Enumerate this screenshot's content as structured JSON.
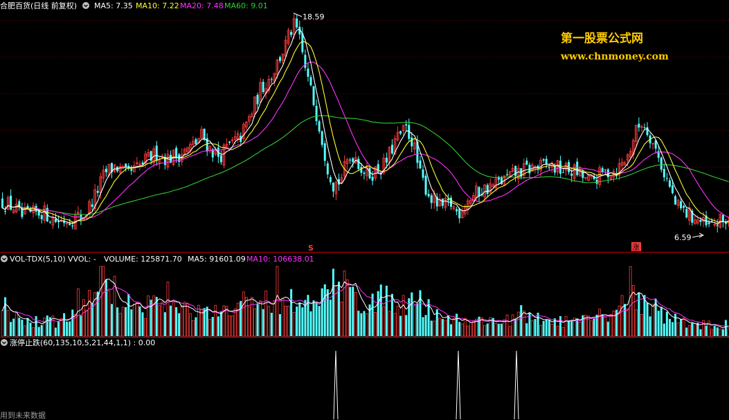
{
  "main_panel": {
    "stock_name": "合肥百货(日线 前复权)",
    "indicators": [
      {
        "label": "MA5: 7.35",
        "color": "#ffffff"
      },
      {
        "label": "MA10: 7.22",
        "color": "#ffff33"
      },
      {
        "label": "MA20: 7.48",
        "color": "#ff33ff"
      },
      {
        "label": "MA60: 9.01",
        "color": "#33cc33"
      }
    ],
    "high_label": "18.59",
    "low_label": "6.59",
    "marker_1": "S",
    "marker_2": "涨"
  },
  "watermark": {
    "line1": "第一股票公式网",
    "line2": "www.chnmoney.com"
  },
  "volume_panel": {
    "name": "VOL-TDX(5,10)",
    "vvol": "VVOL: -",
    "items": [
      {
        "label": "VOLUME: 125871.70",
        "color": "#ffffff"
      },
      {
        "label": "MA5: 91601.09",
        "color": "#ffffff"
      },
      {
        "label": "MA10: 106638.01",
        "color": "#ff33ff"
      }
    ]
  },
  "limit_panel": {
    "name": "涨停止跌(60,135,10,5,21,44,1,1) : 0.00"
  },
  "footer_note": "用到未来数据",
  "colors": {
    "up": "#ff3c3c",
    "down": "#54ffff",
    "ma5": "#ffffff",
    "ma10": "#ffff33",
    "ma20": "#ff33ff",
    "ma60": "#33cc33",
    "divider": "#c00000",
    "watermark": "#ffcc00"
  },
  "chart_data": {
    "type": "candlestick",
    "price_range": [
      6.59,
      18.59
    ],
    "close_trajectory": [
      [
        0,
        8.4
      ],
      [
        20,
        8.0
      ],
      [
        30,
        7.5
      ],
      [
        60,
        7.8
      ],
      [
        80,
        7.3
      ],
      [
        100,
        7.4
      ],
      [
        120,
        7.6
      ],
      [
        135,
        8.6
      ],
      [
        150,
        9.9
      ],
      [
        165,
        10.3
      ],
      [
        180,
        9.8
      ],
      [
        195,
        10.1
      ],
      [
        210,
        10.6
      ],
      [
        225,
        11.0
      ],
      [
        240,
        10.7
      ],
      [
        255,
        10.9
      ],
      [
        270,
        11.2
      ],
      [
        280,
        11.5
      ],
      [
        290,
        12.0
      ],
      [
        300,
        11.3
      ],
      [
        315,
        10.8
      ],
      [
        330,
        11.4
      ],
      [
        345,
        11.8
      ],
      [
        360,
        13.0
      ],
      [
        375,
        14.5
      ],
      [
        390,
        15.2
      ],
      [
        400,
        16.0
      ],
      [
        410,
        16.8
      ],
      [
        418,
        17.6
      ],
      [
        425,
        18.0
      ],
      [
        432,
        17.0
      ],
      [
        440,
        15.5
      ],
      [
        450,
        14.0
      ],
      [
        460,
        12.5
      ],
      [
        470,
        10.5
      ],
      [
        480,
        9.3
      ],
      [
        490,
        9.5
      ],
      [
        500,
        10.5
      ],
      [
        510,
        11.0
      ],
      [
        520,
        10.2
      ],
      [
        530,
        9.8
      ],
      [
        540,
        10.0
      ],
      [
        555,
        10.4
      ],
      [
        570,
        11.7
      ],
      [
        585,
        12.3
      ],
      [
        595,
        11.6
      ],
      [
        605,
        9.8
      ],
      [
        620,
        8.6
      ],
      [
        635,
        8.0
      ],
      [
        650,
        8.2
      ],
      [
        660,
        7.7
      ],
      [
        670,
        8.3
      ],
      [
        690,
        8.9
      ],
      [
        710,
        9.2
      ],
      [
        730,
        9.6
      ],
      [
        750,
        10.0
      ],
      [
        770,
        10.2
      ],
      [
        790,
        10.3
      ],
      [
        810,
        10.1
      ],
      [
        830,
        10.0
      ],
      [
        850,
        9.4
      ],
      [
        870,
        9.9
      ],
      [
        890,
        10.1
      ],
      [
        905,
        10.8
      ],
      [
        915,
        12.0
      ],
      [
        925,
        12.7
      ],
      [
        935,
        12.2
      ],
      [
        945,
        11.2
      ],
      [
        955,
        10.2
      ],
      [
        965,
        9.2
      ],
      [
        975,
        8.1
      ],
      [
        990,
        7.7
      ],
      [
        1005,
        7.4
      ],
      [
        1020,
        6.9
      ],
      [
        1035,
        7.2
      ],
      [
        1053,
        7.4
      ]
    ],
    "volume_trajectory": [
      [
        0,
        0.3
      ],
      [
        40,
        0.2
      ],
      [
        80,
        0.2
      ],
      [
        110,
        0.3
      ],
      [
        130,
        0.55
      ],
      [
        150,
        0.8
      ],
      [
        165,
        0.6
      ],
      [
        180,
        0.45
      ],
      [
        200,
        0.35
      ],
      [
        220,
        0.5
      ],
      [
        240,
        0.4
      ],
      [
        270,
        0.35
      ],
      [
        300,
        0.3
      ],
      [
        330,
        0.3
      ],
      [
        355,
        0.5
      ],
      [
        380,
        0.45
      ],
      [
        400,
        0.5
      ],
      [
        420,
        0.55
      ],
      [
        440,
        0.4
      ],
      [
        460,
        0.45
      ],
      [
        475,
        0.6
      ],
      [
        490,
        0.8
      ],
      [
        505,
        0.55
      ],
      [
        520,
        0.5
      ],
      [
        540,
        0.45
      ],
      [
        560,
        0.55
      ],
      [
        575,
        0.45
      ],
      [
        595,
        0.5
      ],
      [
        615,
        0.4
      ],
      [
        640,
        0.25
      ],
      [
        680,
        0.2
      ],
      [
        720,
        0.22
      ],
      [
        760,
        0.25
      ],
      [
        800,
        0.2
      ],
      [
        840,
        0.2
      ],
      [
        880,
        0.3
      ],
      [
        905,
        0.5
      ],
      [
        920,
        0.55
      ],
      [
        935,
        0.45
      ],
      [
        955,
        0.3
      ],
      [
        980,
        0.2
      ],
      [
        1020,
        0.15
      ],
      [
        1053,
        0.12
      ]
    ],
    "limit_up_spikes": [
      485,
      662,
      746
    ]
  }
}
